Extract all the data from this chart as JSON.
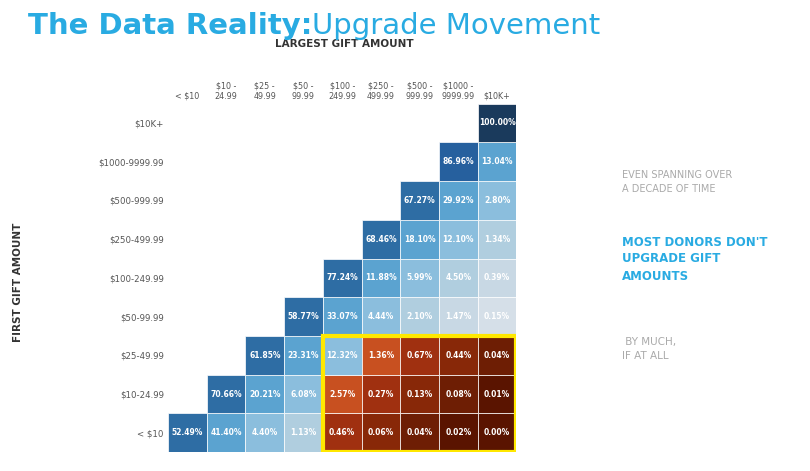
{
  "title_bold": "The Data Reality:",
  "title_light": "Upgrade Movement",
  "col_labels": [
    "< $10",
    "$10 -\n24.99",
    "$25 -\n49.99",
    "$50 -\n99.99",
    "$100 -\n249.99",
    "$250 -\n499.99",
    "$500 -\n999.99",
    "$1000 -\n9999.99",
    "$10K+"
  ],
  "row_labels": [
    "< $10",
    "$10-24.99",
    "$25-49.99",
    "$50-99.99",
    "$100-249.99",
    "$250-499.99",
    "$500-999.99",
    "$1000-9999.99",
    "$10K+"
  ],
  "col_header": "LARGEST GIFT AMOUNT",
  "row_header": "FIRST GIFT AMOUNT",
  "values": [
    [
      52.49,
      41.4,
      4.4,
      1.13,
      0.46,
      0.06,
      0.04,
      0.02,
      0.0
    ],
    [
      null,
      70.66,
      20.21,
      6.08,
      2.57,
      0.27,
      0.13,
      0.08,
      0.01
    ],
    [
      null,
      null,
      61.85,
      23.31,
      12.32,
      1.36,
      0.67,
      0.44,
      0.04
    ],
    [
      null,
      null,
      null,
      58.77,
      33.07,
      4.44,
      2.1,
      1.47,
      0.15
    ],
    [
      null,
      null,
      null,
      null,
      77.24,
      11.88,
      5.99,
      4.5,
      0.39
    ],
    [
      null,
      null,
      null,
      null,
      null,
      68.46,
      18.1,
      12.1,
      1.34
    ],
    [
      null,
      null,
      null,
      null,
      null,
      null,
      67.27,
      29.92,
      2.8
    ],
    [
      null,
      null,
      null,
      null,
      null,
      null,
      null,
      86.96,
      13.04
    ],
    [
      null,
      null,
      null,
      null,
      null,
      null,
      null,
      null,
      100.0
    ]
  ],
  "cell_colors": {
    "diag": [
      "#2E6DA4",
      "#2E6DA4",
      "#2E6DA4",
      "#2E6DA4",
      "#2E6DA4",
      "#2E6DA4",
      "#2E6DA4",
      "#26609E",
      "#1A3A5C"
    ],
    "d1": "#5BA3D0",
    "d2": "#8BBEDD",
    "d3": "#B0CEDF",
    "d4": "#C8D8E4",
    "d5p": "#D5DFE8",
    "orange1": "#C85020",
    "orange2": "#A03010",
    "brown1": "#882808",
    "brown2": "#6E1E04",
    "brown3": "#5A1400"
  },
  "yellow_border": "#FFE800",
  "color_title_blue": "#29ABE2",
  "color_sidebar_gray": "#AAAAAA",
  "background": "#FFFFFF",
  "grid_color": "#FFFFFF"
}
